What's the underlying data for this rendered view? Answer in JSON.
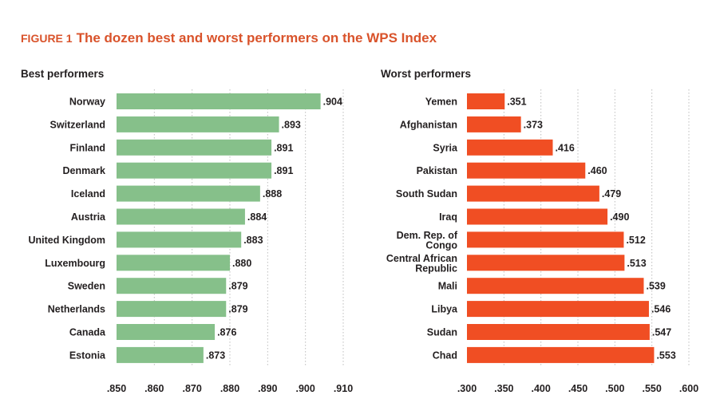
{
  "figure": {
    "label": "FIGURE 1",
    "title": "The dozen best and worst performers on the WPS Index"
  },
  "colors": {
    "title": "#d9532b",
    "best_bar": "#86c08a",
    "worst_bar": "#f04e23",
    "grid": "#bdbdbd",
    "text": "#231f20"
  },
  "chart_data": [
    {
      "type": "bar",
      "orientation": "horizontal",
      "title": "Best performers",
      "categories": [
        "Norway",
        "Switzerland",
        "Finland",
        "Denmark",
        "Iceland",
        "Austria",
        "United Kingdom",
        "Luxembourg",
        "Sweden",
        "Netherlands",
        "Canada",
        "Estonia"
      ],
      "values": [
        0.904,
        0.893,
        0.891,
        0.891,
        0.888,
        0.884,
        0.883,
        0.88,
        0.879,
        0.879,
        0.876,
        0.873
      ],
      "value_labels": [
        ".904",
        ".893",
        ".891",
        ".891",
        ".888",
        ".884",
        ".883",
        ".880",
        ".879",
        ".879",
        ".876",
        ".873"
      ],
      "xlim": [
        0.85,
        0.91
      ],
      "ticks": [
        0.85,
        0.86,
        0.87,
        0.88,
        0.89,
        0.9,
        0.91
      ],
      "tick_labels": [
        ".850",
        ".860",
        ".870",
        ".880",
        ".890",
        ".900",
        ".910"
      ],
      "grid": true,
      "xlabel": "",
      "ylabel": ""
    },
    {
      "type": "bar",
      "orientation": "horizontal",
      "title": "Worst performers",
      "categories": [
        "Yemen",
        "Afghanistan",
        "Syria",
        "Pakistan",
        "South Sudan",
        "Iraq",
        "Dem. Rep. of Congo",
        "Central African Republic",
        "Mali",
        "Libya",
        "Sudan",
        "Chad"
      ],
      "category_lines": [
        [
          "Yemen"
        ],
        [
          "Afghanistan"
        ],
        [
          "Syria"
        ],
        [
          "Pakistan"
        ],
        [
          "South Sudan"
        ],
        [
          "Iraq"
        ],
        [
          "Dem. Rep. of",
          "Congo"
        ],
        [
          "Central African",
          "Republic"
        ],
        [
          "Mali"
        ],
        [
          "Libya"
        ],
        [
          "Sudan"
        ],
        [
          "Chad"
        ]
      ],
      "values": [
        0.351,
        0.373,
        0.416,
        0.46,
        0.479,
        0.49,
        0.512,
        0.513,
        0.539,
        0.546,
        0.547,
        0.553
      ],
      "value_labels": [
        ".351",
        ".373",
        ".416",
        ".460",
        ".479",
        ".490",
        ".512",
        ".513",
        ".539",
        ".546",
        ".547",
        ".553"
      ],
      "xlim": [
        0.3,
        0.6
      ],
      "ticks": [
        0.3,
        0.35,
        0.4,
        0.45,
        0.5,
        0.55,
        0.6
      ],
      "tick_labels": [
        ".300",
        ".350",
        ".400",
        ".450",
        ".500",
        ".550",
        ".600"
      ],
      "grid": true,
      "xlabel": "",
      "ylabel": ""
    }
  ]
}
